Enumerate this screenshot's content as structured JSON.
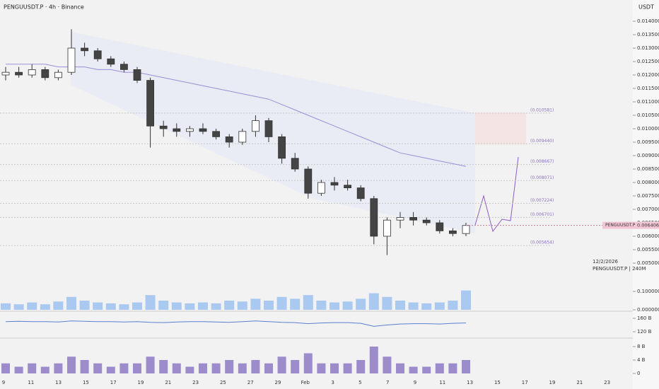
{
  "chart_data": {
    "type": "candlestick",
    "title": "PENGUUSDT.P · 4h · Binance",
    "currency": "USDT",
    "date_note": "12/2/2026",
    "symbol_note": "PENGUUSDT.P | 240M",
    "x_labels": [
      "9",
      "11",
      "13",
      "15",
      "17",
      "19",
      "21",
      "23",
      "25",
      "27",
      "29",
      "Feb",
      "3",
      "5",
      "7",
      "9",
      "11",
      "13",
      "15",
      "17",
      "19",
      "21",
      "23"
    ],
    "ylim": [
      0.0048,
      0.0142
    ],
    "yticks": [
      {
        "value": 0.005,
        "label": "0.005000"
      },
      {
        "value": 0.0055,
        "label": "0.005500"
      },
      {
        "value": 0.006,
        "label": "0.006000"
      },
      {
        "value": 0.0065,
        "label": "0.006500"
      },
      {
        "value": 0.007,
        "label": "0.007000"
      },
      {
        "value": 0.0075,
        "label": "0.007500"
      },
      {
        "value": 0.008,
        "label": "0.008000"
      },
      {
        "value": 0.0085,
        "label": "0.008500"
      },
      {
        "value": 0.009,
        "label": "0.009000"
      },
      {
        "value": 0.0095,
        "label": "0.009500"
      },
      {
        "value": 0.01,
        "label": "0.010000"
      },
      {
        "value": 0.0105,
        "label": "0.010500"
      },
      {
        "value": 0.011,
        "label": "0.011000"
      },
      {
        "value": 0.0115,
        "label": "0.011500"
      },
      {
        "value": 0.012,
        "label": "0.012000"
      },
      {
        "value": 0.0125,
        "label": "0.012500"
      },
      {
        "value": 0.013,
        "label": "0.013000"
      },
      {
        "value": 0.0135,
        "label": "0.013500"
      },
      {
        "value": 0.014,
        "label": "0.014000"
      }
    ],
    "open": [
      0.012,
      0.0121,
      0.012,
      0.0122,
      0.0119,
      0.0121,
      0.013,
      0.0129,
      0.0126,
      0.0124,
      0.0122,
      0.0118,
      0.0101,
      0.01,
      0.0099,
      0.01,
      0.0099,
      0.0097,
      0.0095,
      0.0099,
      0.0103,
      0.0097,
      0.0089,
      0.0085,
      0.0076,
      0.008,
      0.0079,
      0.0078,
      0.0074,
      0.006,
      0.0066,
      0.0067,
      0.0066,
      0.0065,
      0.0062,
      0.0061
    ],
    "high": [
      0.0123,
      0.0123,
      0.0124,
      0.0123,
      0.0122,
      0.0137,
      0.0132,
      0.013,
      0.0127,
      0.0125,
      0.0123,
      0.0119,
      0.0103,
      0.0102,
      0.0101,
      0.0102,
      0.01,
      0.0098,
      0.01,
      0.0105,
      0.0104,
      0.0098,
      0.0091,
      0.0086,
      0.0081,
      0.0082,
      0.0081,
      0.0079,
      0.0075,
      0.0067,
      0.0069,
      0.0069,
      0.0067,
      0.0066,
      0.0063,
      0.0065
    ],
    "low": [
      0.0118,
      0.0119,
      0.0119,
      0.0118,
      0.0118,
      0.012,
      0.0127,
      0.0125,
      0.0123,
      0.0121,
      0.0117,
      0.0093,
      0.0097,
      0.0097,
      0.0097,
      0.0098,
      0.0096,
      0.0093,
      0.0094,
      0.0097,
      0.0095,
      0.0087,
      0.0084,
      0.0074,
      0.0075,
      0.0077,
      0.0077,
      0.0073,
      0.0057,
      0.0053,
      0.0063,
      0.0064,
      0.0064,
      0.0061,
      0.006,
      0.006
    ],
    "close": [
      0.0121,
      0.012,
      0.0122,
      0.0119,
      0.0121,
      0.013,
      0.0129,
      0.0126,
      0.0124,
      0.0122,
      0.0118,
      0.0101,
      0.01,
      0.0099,
      0.01,
      0.0099,
      0.0097,
      0.0095,
      0.0099,
      0.0103,
      0.0097,
      0.0089,
      0.0085,
      0.0076,
      0.008,
      0.0079,
      0.0078,
      0.0074,
      0.006,
      0.0066,
      0.0067,
      0.0066,
      0.0065,
      0.0062,
      0.0061,
      0.0064
    ],
    "ma": {
      "color": "#9b8fd6",
      "values": [
        0.0124,
        0.0124,
        0.0124,
        0.0124,
        0.0123,
        0.0123,
        0.0123,
        0.0122,
        0.0122,
        0.0121,
        0.0121,
        0.012,
        0.0119,
        0.0118,
        0.0117,
        0.0116,
        0.0115,
        0.0114,
        0.0113,
        0.0112,
        0.0111,
        0.0109,
        0.0107,
        0.0105,
        0.0103,
        0.0101,
        0.0099,
        0.0097,
        0.0095,
        0.0093,
        0.0091,
        0.009,
        0.0089,
        0.0088,
        0.0087,
        0.0086
      ]
    },
    "levels": [
      {
        "value": 0.010581,
        "label": "(0.010581)"
      },
      {
        "value": 0.00944,
        "label": "(0.009440)"
      },
      {
        "value": 0.008667,
        "label": "(0.008667)"
      },
      {
        "value": 0.008071,
        "label": "(0.008071)"
      },
      {
        "value": 0.007224,
        "label": "(0.007224)"
      },
      {
        "value": 0.006701,
        "label": "(0.006701)"
      },
      {
        "value": 0.005654,
        "label": "(0.005654)"
      }
    ],
    "last_price": {
      "name": "PENGUUSDT.P",
      "value": 0.006406,
      "label": "0.006406",
      "color": "#f3c6d6"
    },
    "volume": {
      "color": "#a9c9f0",
      "ylim": [
        0,
        0.15
      ],
      "yticks": [
        {
          "value": 0,
          "label": "0.000000"
        },
        {
          "value": 0.1,
          "label": "0.100000"
        }
      ],
      "values": [
        0.035,
        0.03,
        0.04,
        0.03,
        0.045,
        0.07,
        0.05,
        0.04,
        0.035,
        0.03,
        0.04,
        0.08,
        0.05,
        0.04,
        0.035,
        0.04,
        0.035,
        0.05,
        0.045,
        0.06,
        0.05,
        0.07,
        0.06,
        0.08,
        0.05,
        0.04,
        0.045,
        0.06,
        0.09,
        0.07,
        0.05,
        0.04,
        0.035,
        0.04,
        0.05,
        0.105
      ]
    },
    "indicator": {
      "color": "#5b7fd0",
      "ylim": [
        100,
        180
      ],
      "yticks": [
        {
          "value": 120,
          "label": "120 B"
        },
        {
          "value": 160,
          "label": "160 B"
        }
      ],
      "values": [
        150,
        151,
        150,
        150,
        149,
        152,
        151,
        150,
        150,
        149,
        150,
        148,
        147,
        149,
        150,
        150,
        149,
        148,
        150,
        152,
        150,
        148,
        147,
        144,
        146,
        147,
        147,
        145,
        136,
        140,
        143,
        144,
        144,
        143,
        145,
        146
      ]
    },
    "histogram": {
      "color": "#9d8ccc",
      "ylim": [
        0,
        9
      ],
      "yticks": [
        0,
        {
          "value": 4,
          "label": "4 B"
        },
        {
          "value": 8,
          "label": "8 B"
        }
      ],
      "values": [
        3,
        2,
        3,
        2,
        3,
        5,
        4,
        3,
        2,
        3,
        3,
        5,
        4,
        3,
        2,
        3,
        3,
        4,
        3,
        4,
        3,
        5,
        4,
        6,
        3,
        3,
        3,
        4,
        8,
        5,
        3,
        2,
        2,
        3,
        3,
        4
      ]
    }
  }
}
